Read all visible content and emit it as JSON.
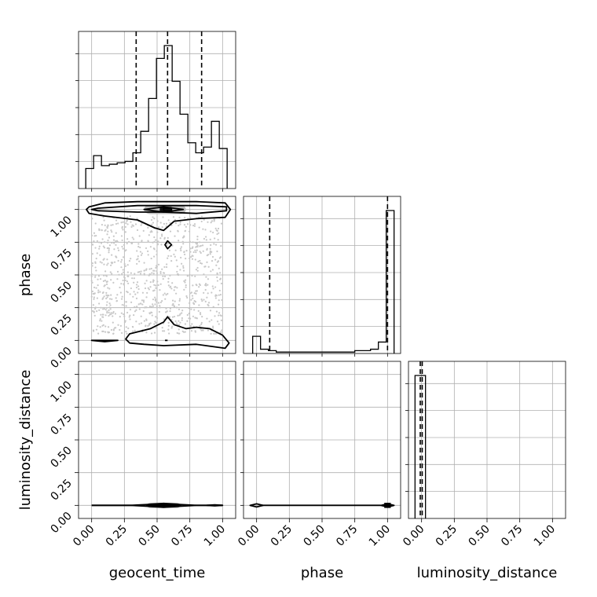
{
  "chart_data": {
    "type": "corner",
    "parameters": [
      "geocent_time",
      "phase",
      "luminosity_distance"
    ],
    "tick_labels": [
      "0.00",
      "0.25",
      "0.50",
      "0.75",
      "1.00"
    ],
    "grid": true,
    "histograms": {
      "geocent_time": {
        "bin_edges": [
          -0.045,
          -0.015,
          0.015,
          0.045,
          0.075,
          0.105,
          0.135,
          0.165,
          0.195,
          0.225,
          0.255,
          0.285,
          0.315,
          0.345,
          0.375,
          0.405,
          0.435,
          0.465,
          0.495,
          0.525,
          0.555,
          0.585,
          0.615,
          0.645,
          0.675,
          0.705,
          0.735,
          0.765,
          0.795,
          0.825,
          0.855,
          0.885,
          0.915,
          0.945,
          0.975,
          1.005,
          1.035
        ],
        "counts": [
          0.14,
          0.14,
          0.23,
          0.23,
          0.16,
          0.16,
          0.17,
          0.17,
          0.18,
          0.18,
          0.19,
          0.19,
          0.25,
          0.25,
          0.4,
          0.4,
          0.63,
          0.63,
          0.91,
          0.91,
          1.0,
          1.0,
          0.75,
          0.75,
          0.52,
          0.52,
          0.32,
          0.32,
          0.25,
          0.25,
          0.29,
          0.29,
          0.47,
          0.47,
          0.28,
          0.28
        ],
        "quantiles": [
          0.34,
          0.58,
          0.84
        ]
      },
      "phase": {
        "bin_edges": [
          -0.03,
          0.03,
          0.09,
          0.15,
          0.21,
          0.27,
          0.33,
          0.39,
          0.45,
          0.51,
          0.57,
          0.63,
          0.69,
          0.75,
          0.81,
          0.87,
          0.93,
          0.99,
          1.05
        ],
        "counts": [
          0.12,
          0.03,
          0.02,
          0.01,
          0.01,
          0.01,
          0.01,
          0.01,
          0.01,
          0.01,
          0.01,
          0.01,
          0.01,
          0.02,
          0.02,
          0.03,
          0.08,
          1.0
        ],
        "quantiles": [
          0.1,
          1.0
        ]
      },
      "luminosity_distance": {
        "bin_edges": [
          -0.05,
          -0.01,
          0.03
        ],
        "counts": [
          1.0,
          1.0
        ],
        "quantiles": [
          -0.01,
          0.005
        ]
      }
    },
    "contours_2d": {
      "phase_vs_geocent_time": {
        "x": "geocent_time",
        "y": "phase",
        "contours": [
          [
            [
              -0.02,
              1.02
            ],
            [
              0.1,
              1.05
            ],
            [
              0.35,
              1.06
            ],
            [
              0.55,
              1.06
            ],
            [
              0.8,
              1.06
            ],
            [
              1.02,
              1.05
            ],
            [
              1.06,
              1.0
            ],
            [
              1.02,
              0.94
            ],
            [
              0.8,
              0.93
            ],
            [
              0.63,
              0.91
            ],
            [
              0.55,
              0.84
            ],
            [
              0.48,
              0.86
            ],
            [
              0.35,
              0.92
            ],
            [
              0.1,
              0.95
            ],
            [
              -0.02,
              0.97
            ],
            [
              -0.04,
              1.0
            ]
          ],
          [
            [
              0.05,
              1.01
            ],
            [
              0.35,
              1.03
            ],
            [
              0.55,
              1.03
            ],
            [
              0.8,
              1.03
            ],
            [
              1.03,
              1.02
            ],
            [
              1.03,
              0.99
            ],
            [
              0.8,
              0.97
            ],
            [
              0.55,
              0.98
            ],
            [
              0.35,
              0.98
            ],
            [
              0.05,
              0.99
            ],
            [
              0.0,
              1.0
            ]
          ],
          [
            [
              0.4,
              1.0
            ],
            [
              0.55,
              1.02
            ],
            [
              0.7,
              1.0
            ],
            [
              0.55,
              0.98
            ]
          ],
          [
            [
              0.55,
              1.01
            ],
            [
              0.61,
              1.01
            ],
            [
              0.61,
              0.99
            ],
            [
              0.55,
              0.99
            ]
          ],
          [
            [
              0.56,
              0.73
            ],
            [
              0.58,
              0.76
            ],
            [
              0.61,
              0.73
            ],
            [
              0.58,
              0.7
            ]
          ],
          [
            [
              0.29,
              0.05
            ],
            [
              0.45,
              0.09
            ],
            [
              0.55,
              0.14
            ],
            [
              0.58,
              0.18
            ],
            [
              0.63,
              0.12
            ],
            [
              0.72,
              0.09
            ],
            [
              0.8,
              0.1
            ],
            [
              0.9,
              0.09
            ],
            [
              1.0,
              0.04
            ],
            [
              1.05,
              -0.02
            ],
            [
              1.02,
              -0.06
            ],
            [
              0.8,
              -0.03
            ],
            [
              0.55,
              -0.04
            ],
            [
              0.4,
              -0.03
            ],
            [
              0.29,
              -0.02
            ],
            [
              0.26,
              0.01
            ]
          ],
          [
            [
              0.0,
              0.0
            ],
            [
              0.1,
              0.0
            ],
            [
              0.2,
              0.0
            ],
            [
              0.1,
              -0.01
            ]
          ],
          [
            [
              0.56,
              0.0
            ],
            [
              0.58,
              0.0
            ]
          ]
        ]
      },
      "luminosity_distance_vs_geocent_time": {
        "x": "geocent_time",
        "y": "luminosity_distance",
        "contours": [
          [
            [
              0.0,
              0.0
            ],
            [
              0.3,
              0.0
            ],
            [
              0.45,
              0.008
            ],
            [
              0.55,
              0.015
            ],
            [
              0.65,
              0.008
            ],
            [
              0.8,
              0.0
            ],
            [
              1.0,
              0.0
            ]
          ],
          [
            [
              0.0,
              0.0
            ],
            [
              0.3,
              0.0
            ],
            [
              0.45,
              -0.008
            ],
            [
              0.55,
              -0.015
            ],
            [
              0.65,
              -0.008
            ],
            [
              0.8,
              0.0
            ],
            [
              1.0,
              0.0
            ]
          ],
          [
            [
              0.42,
              0.0
            ],
            [
              0.55,
              0.008
            ],
            [
              0.68,
              0.0
            ],
            [
              0.55,
              -0.008
            ]
          ],
          [
            [
              0.48,
              0.0
            ],
            [
              0.55,
              0.004
            ],
            [
              0.61,
              0.0
            ],
            [
              0.55,
              -0.004
            ]
          ],
          [
            [
              0.88,
              0.0
            ],
            [
              0.94,
              0.004
            ],
            [
              1.0,
              0.0
            ],
            [
              0.94,
              -0.004
            ]
          ]
        ]
      },
      "luminosity_distance_vs_phase": {
        "x": "phase",
        "y": "luminosity_distance",
        "contours": [
          [
            [
              -0.05,
              0.0
            ],
            [
              0.0,
              0.012
            ],
            [
              0.05,
              0.0
            ],
            [
              0.0,
              -0.012
            ]
          ],
          [
            [
              0.04,
              0.0
            ],
            [
              0.95,
              0.0
            ]
          ],
          [
            [
              0.95,
              0.0
            ],
            [
              1.0,
              0.012
            ],
            [
              1.05,
              0.0
            ],
            [
              1.0,
              -0.012
            ]
          ],
          [
            [
              0.98,
              0.004
            ],
            [
              1.02,
              0.004
            ],
            [
              1.02,
              -0.004
            ],
            [
              0.98,
              -0.004
            ]
          ]
        ]
      }
    }
  }
}
